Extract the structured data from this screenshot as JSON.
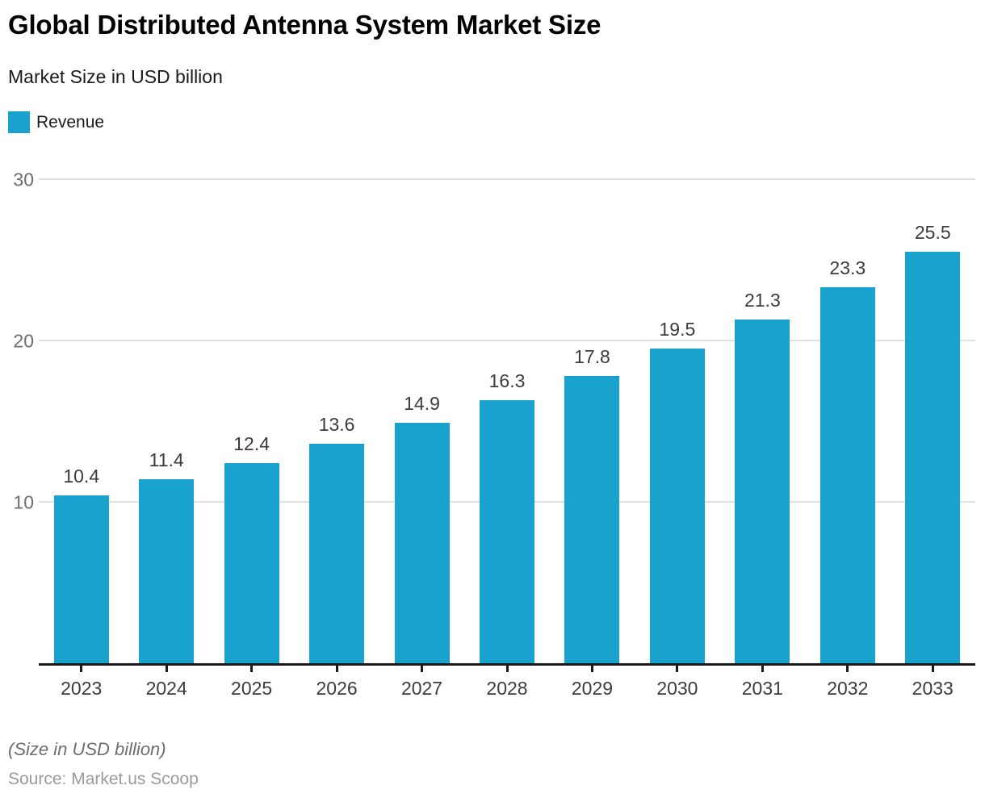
{
  "header": {
    "title": "Global Distributed Antenna System Market Size",
    "subtitle": "Market Size in USD billion",
    "legend": {
      "label": "Revenue",
      "color": "#19a2ce"
    }
  },
  "chart_data": {
    "type": "bar",
    "title": "Global Distributed Antenna System Market Size",
    "subtitle": "Market Size in USD billion",
    "categories": [
      "2023",
      "2024",
      "2025",
      "2026",
      "2027",
      "2028",
      "2029",
      "2030",
      "2031",
      "2032",
      "2033"
    ],
    "series": [
      {
        "name": "Revenue",
        "values": [
          10.4,
          11.4,
          12.4,
          13.6,
          14.9,
          16.3,
          17.8,
          19.5,
          21.3,
          23.3,
          25.5
        ]
      }
    ],
    "value_labels": [
      "10.4",
      "11.4",
      "12.4",
      "13.6",
      "14.9",
      "16.3",
      "17.8",
      "19.5",
      "21.3",
      "23.3",
      "25.5"
    ],
    "xlabel": "",
    "ylabel": "",
    "ylim": [
      0,
      31.5
    ],
    "yticks": [
      10,
      20,
      30
    ],
    "grid": true,
    "legend_position": "top-left",
    "colors": {
      "bar": "#19a2ce",
      "gridline": "#e0e0e0",
      "axis_line": "#1a1a1a",
      "ytick_label": "#6e6e6e",
      "value_label": "#3c3c3c",
      "xtick_label": "#3c3c3c"
    }
  },
  "footer": {
    "note": "(Size in USD billion)",
    "source": "Source: Market.us Scoop"
  }
}
